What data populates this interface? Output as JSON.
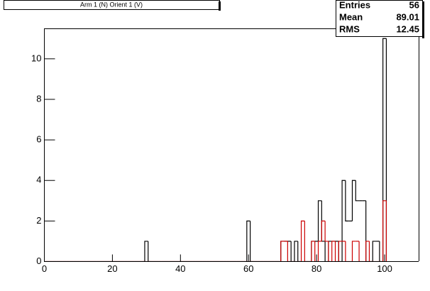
{
  "chart_data": {
    "type": "histogram",
    "title": "Arm 1 (N) Orient 1 (V)",
    "bins": [
      -0.5,
      0.5,
      1.5,
      2.5,
      3.5,
      4.5,
      5.5,
      6.5,
      7.5,
      8.5,
      9.5,
      10.5,
      11.5,
      12.5,
      13.5,
      14.5,
      15.5,
      16.5,
      17.5,
      18.5,
      19.5,
      20.5,
      21.5,
      22.5,
      23.5,
      24.5,
      25.5,
      26.5,
      27.5,
      28.5,
      29.5,
      30.5,
      31.5,
      32.5,
      33.5,
      34.5,
      35.5,
      36.5,
      37.5,
      38.5,
      39.5,
      40.5,
      41.5,
      42.5,
      43.5,
      44.5,
      45.5,
      46.5,
      47.5,
      48.5,
      49.5,
      50.5,
      51.5,
      52.5,
      53.5,
      54.5,
      55.5,
      56.5,
      57.5,
      58.5,
      59.5,
      60.5,
      61.5,
      62.5,
      63.5,
      64.5,
      65.5,
      66.5,
      67.5,
      68.5,
      69.5,
      70.5,
      71.5,
      72.5,
      73.5,
      74.5,
      75.5,
      76.5,
      77.5,
      78.5,
      79.5,
      80.5,
      81.5,
      82.5,
      83.5,
      84.5,
      85.5,
      86.5,
      87.5,
      88.5,
      89.5,
      90.5,
      91.5,
      92.5,
      93.5,
      94.5,
      95.5,
      96.5,
      97.5,
      98.5,
      99.5,
      100.5
    ],
    "series": [
      {
        "color": "#000000",
        "values": [
          0,
          0,
          0,
          0,
          0,
          0,
          0,
          0,
          0,
          0,
          0,
          0,
          0,
          0,
          0,
          0,
          0,
          0,
          0,
          0,
          0,
          0,
          0,
          0,
          0,
          0,
          0,
          0,
          0,
          0,
          1,
          0,
          0,
          0,
          0,
          0,
          0,
          0,
          0,
          0,
          0,
          0,
          0,
          0,
          0,
          0,
          0,
          0,
          0,
          0,
          0,
          0,
          0,
          0,
          0,
          0,
          0,
          0,
          0,
          0,
          2,
          0,
          0,
          0,
          0,
          0,
          0,
          0,
          0,
          0,
          1,
          1,
          1,
          0,
          1,
          0,
          0,
          0,
          0,
          1,
          1,
          3,
          1,
          0,
          1,
          1,
          1,
          0,
          4,
          2,
          2,
          4,
          3,
          3,
          3,
          0,
          0,
          1,
          1,
          0,
          11
        ]
      },
      {
        "color": "#cc0000",
        "values": [
          0,
          0,
          0,
          0,
          0,
          0,
          0,
          0,
          0,
          0,
          0,
          0,
          0,
          0,
          0,
          0,
          0,
          0,
          0,
          0,
          0,
          0,
          0,
          0,
          0,
          0,
          0,
          0,
          0,
          0,
          0,
          0,
          0,
          0,
          0,
          0,
          0,
          0,
          0,
          0,
          0,
          0,
          0,
          0,
          0,
          0,
          0,
          0,
          0,
          0,
          0,
          0,
          0,
          0,
          0,
          0,
          0,
          0,
          0,
          0,
          0,
          0,
          0,
          0,
          0,
          0,
          0,
          0,
          0,
          0,
          1,
          1,
          0,
          0,
          0,
          0,
          2,
          0,
          0,
          1,
          0,
          1,
          2,
          1,
          0,
          1,
          0,
          1,
          1,
          0,
          0,
          1,
          1,
          0,
          0,
          1,
          0,
          0,
          0,
          0,
          3
        ]
      }
    ],
    "xlim": [
      0,
      110
    ],
    "xticks": [
      0,
      20,
      40,
      60,
      80,
      100
    ],
    "ylim": [
      0,
      11.5
    ],
    "yticks": [
      0,
      2,
      4,
      6,
      8,
      10
    ],
    "stats": [
      {
        "label": "Entries",
        "value": 56
      },
      {
        "label": "Mean",
        "value": 89.01
      },
      {
        "label": "RMS",
        "value": 12.45
      }
    ]
  }
}
